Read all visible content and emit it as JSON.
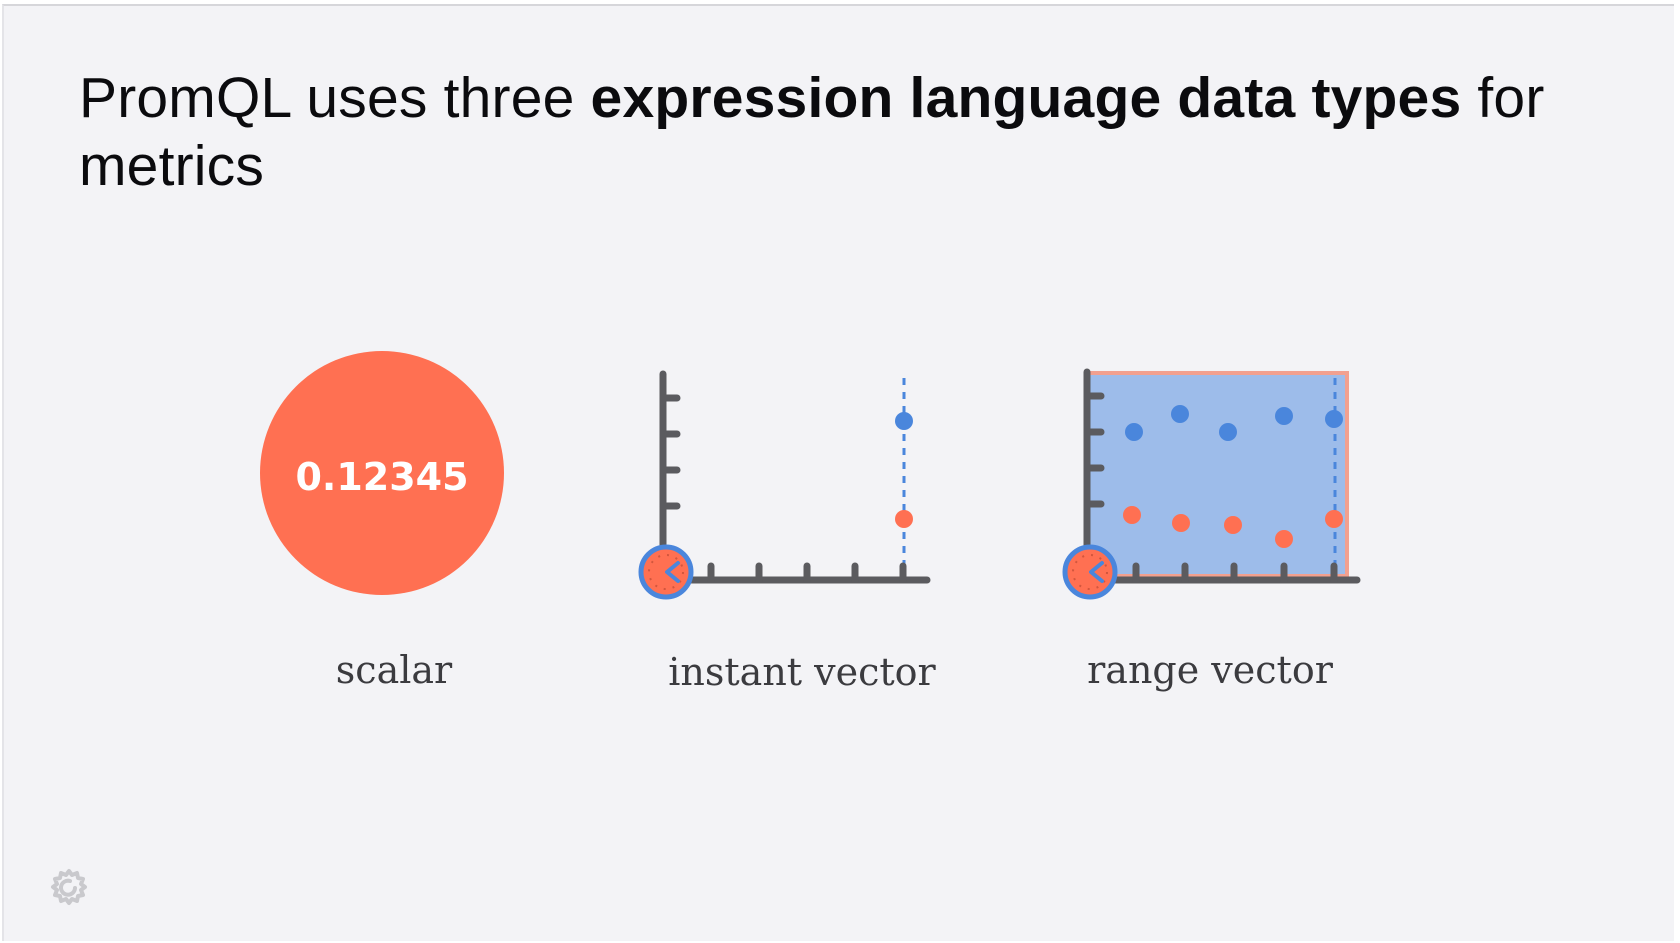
{
  "title": {
    "prefix": "PromQL uses three ",
    "bold": "expression language data types",
    "suffix": " for metrics"
  },
  "scalar": {
    "value": "0.12345",
    "caption": "scalar"
  },
  "instant_vector": {
    "caption": "instant vector"
  },
  "range_vector": {
    "caption": "range vector"
  },
  "colors": {
    "accent_orange": "#ff7052",
    "accent_blue": "#4a86dc",
    "range_fill": "#9dbcea",
    "axis": "#5b5b5f",
    "background": "#f3f3f6"
  },
  "icons": {
    "clock": "clock-icon",
    "logo": "grafana-logo-icon"
  }
}
